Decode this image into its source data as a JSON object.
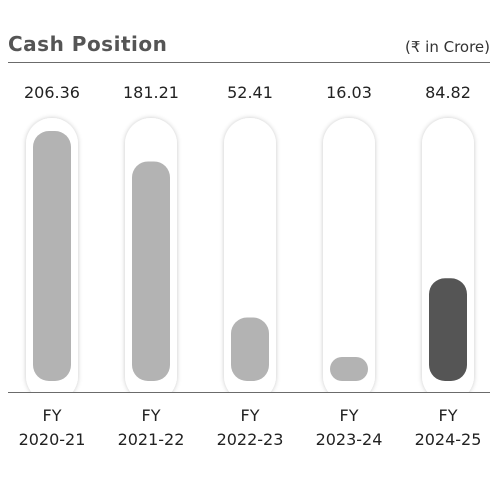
{
  "chart_data": {
    "type": "bar",
    "title": "Cash Position",
    "unit_label": "(₹ in Crore)",
    "categories": [
      "FY\n2020-21",
      "FY\n2021-22",
      "FY\n2022-23",
      "FY\n2023-24",
      "FY\n2024-25"
    ],
    "category_lines": [
      [
        "FY",
        "2020-21"
      ],
      [
        "FY",
        "2021-22"
      ],
      [
        "FY",
        "2022-23"
      ],
      [
        "FY",
        "2023-24"
      ],
      [
        "FY",
        "2024-25"
      ]
    ],
    "values": [
      206.36,
      181.21,
      52.41,
      16.03,
      84.82
    ],
    "value_labels": [
      "206.36",
      "181.21",
      "52.41",
      "16.03",
      "84.82"
    ],
    "ylim": [
      0,
      206.36
    ],
    "grid": false,
    "legend": "none",
    "colors": {
      "bar": "#b3b3b3",
      "highlight_bar": "#555555",
      "track": "#ffffff",
      "track_shadow": "#d9d9d9",
      "rule": "#6b6b6b"
    },
    "highlight_index": 4
  }
}
